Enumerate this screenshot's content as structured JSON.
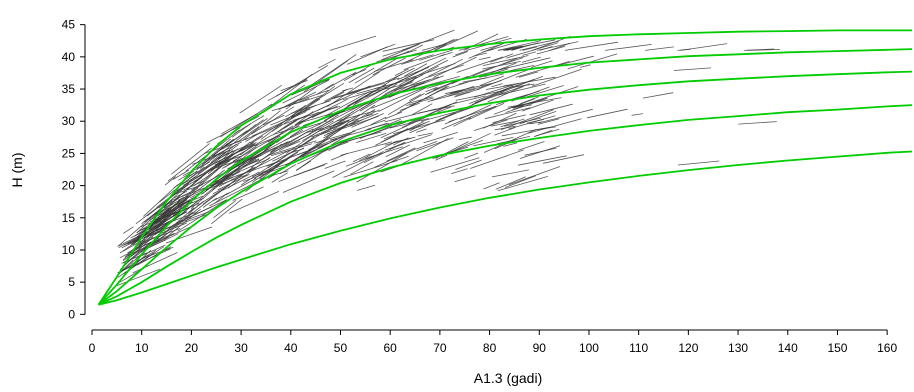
{
  "chart_data": {
    "type": "line",
    "title": "",
    "xlabel": "A1.3 (gadi)",
    "ylabel": "H (m)",
    "xlim": [
      0,
      165
    ],
    "ylim": [
      -1.5,
      46.5
    ],
    "grid": false,
    "legend": "none",
    "xticks": [
      0,
      10,
      20,
      30,
      40,
      50,
      60,
      70,
      80,
      90,
      100,
      110,
      120,
      130,
      140,
      150,
      160
    ],
    "yticks": [
      0,
      5,
      10,
      15,
      20,
      25,
      30,
      35,
      40,
      45
    ],
    "colors": {
      "curve": "#00cc00",
      "observation": "#3a3a3a",
      "axis": "#000000"
    },
    "series": [
      {
        "role": "site-index-curve",
        "x": [
          1.3,
          5,
          10,
          15,
          20,
          25,
          30,
          40,
          50,
          60,
          70,
          80,
          90,
          100,
          110,
          120,
          130,
          140,
          150,
          160,
          165
        ],
        "y": [
          1.5,
          5.8,
          12.0,
          17.5,
          22.2,
          26.1,
          29.3,
          34.2,
          37.5,
          39.6,
          41.0,
          42.0,
          42.7,
          43.2,
          43.5,
          43.7,
          43.9,
          44.0,
          44.1,
          44.1,
          44.1
        ]
      },
      {
        "role": "site-index-curve",
        "x": [
          1.3,
          5,
          10,
          15,
          20,
          25,
          30,
          40,
          50,
          60,
          70,
          80,
          90,
          100,
          110,
          120,
          130,
          140,
          150,
          160,
          165
        ],
        "y": [
          1.5,
          4.6,
          9.3,
          13.7,
          17.6,
          21.0,
          23.8,
          28.3,
          31.6,
          34.1,
          35.9,
          37.3,
          38.3,
          39.1,
          39.6,
          40.1,
          40.4,
          40.7,
          40.9,
          41.1,
          41.2
        ]
      },
      {
        "role": "site-index-curve",
        "x": [
          1.3,
          5,
          10,
          15,
          20,
          25,
          30,
          40,
          50,
          60,
          70,
          80,
          90,
          100,
          110,
          120,
          130,
          140,
          150,
          160,
          165
        ],
        "y": [
          1.5,
          3.6,
          7.0,
          10.4,
          13.6,
          16.5,
          19.0,
          23.4,
          26.8,
          29.4,
          31.3,
          32.8,
          34.0,
          34.9,
          35.6,
          36.2,
          36.6,
          37.0,
          37.3,
          37.6,
          37.7
        ]
      },
      {
        "role": "site-index-curve",
        "x": [
          1.3,
          5,
          10,
          15,
          20,
          25,
          30,
          40,
          50,
          60,
          70,
          80,
          90,
          100,
          110,
          120,
          130,
          140,
          150,
          160,
          165
        ],
        "y": [
          1.5,
          2.8,
          5.0,
          7.4,
          9.7,
          11.9,
          13.9,
          17.5,
          20.4,
          22.8,
          24.7,
          26.2,
          27.4,
          28.5,
          29.4,
          30.2,
          30.8,
          31.4,
          31.8,
          32.3,
          32.5
        ]
      },
      {
        "role": "site-index-curve",
        "x": [
          1.3,
          5,
          10,
          15,
          20,
          25,
          30,
          40,
          50,
          60,
          70,
          80,
          90,
          100,
          110,
          120,
          130,
          140,
          150,
          160,
          165
        ],
        "y": [
          1.5,
          2.2,
          3.4,
          4.7,
          6.0,
          7.3,
          8.5,
          10.9,
          13.0,
          14.9,
          16.6,
          18.1,
          19.4,
          20.5,
          21.5,
          22.4,
          23.2,
          23.9,
          24.5,
          25.1,
          25.3
        ]
      }
    ],
    "observations": {
      "description_of_marks": "many short dark line segments (measured height-age sample trees)",
      "count_estimate": 700,
      "x_range": [
        5,
        133
      ],
      "y_range": [
        4,
        41
      ]
    }
  }
}
